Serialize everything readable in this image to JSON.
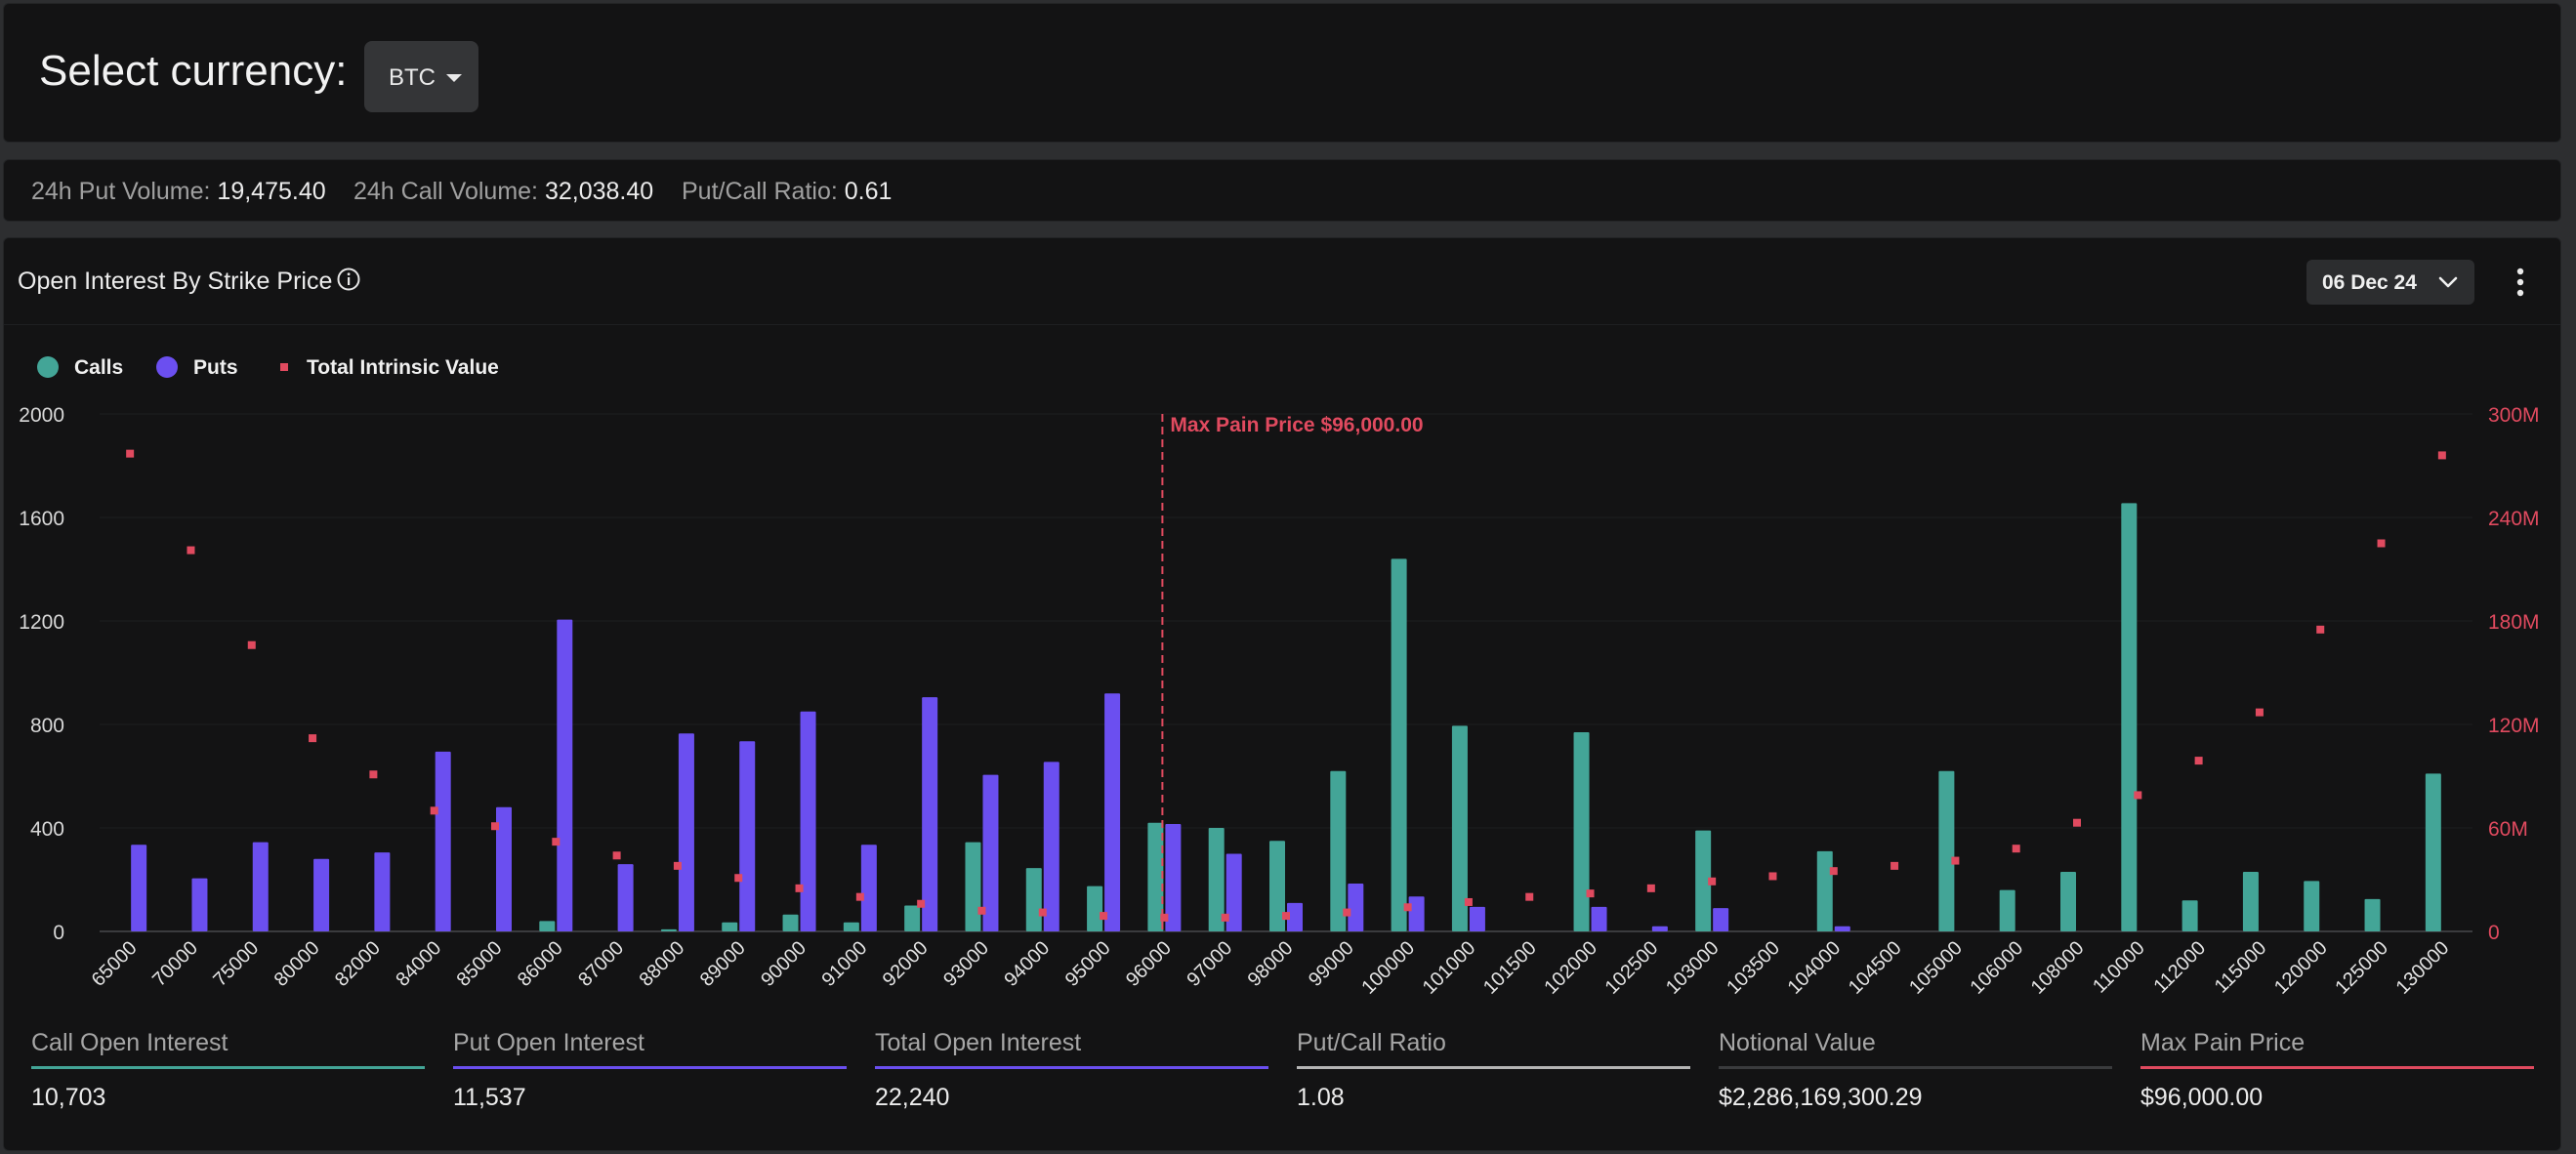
{
  "header": {
    "select_label": "Select currency:",
    "currency": "BTC"
  },
  "stats": {
    "put_volume_label": "24h Put Volume:",
    "put_volume": "19,475.40",
    "call_volume_label": "24h Call Volume:",
    "call_volume": "32,038.40",
    "ratio_label": "Put/Call Ratio:",
    "ratio": "0.61"
  },
  "chart_panel": {
    "title": "Open Interest By Strike Price",
    "date": "06 Dec 24",
    "info_icon": "info-icon",
    "more_icon": "more-vertical-icon"
  },
  "colors": {
    "calls": "#43a597",
    "puts": "#6b4ff0",
    "intrinsic": "#e04a5f",
    "max_pain": "#e04a5f",
    "ratio_line": "#b5b5b5"
  },
  "chart_data": {
    "type": "bar",
    "title": "Open Interest By Strike Price",
    "categories": [
      "65000",
      "70000",
      "75000",
      "80000",
      "82000",
      "84000",
      "85000",
      "86000",
      "87000",
      "88000",
      "89000",
      "90000",
      "91000",
      "92000",
      "93000",
      "94000",
      "95000",
      "96000",
      "97000",
      "98000",
      "99000",
      "100000",
      "101000",
      "101500",
      "102000",
      "102500",
      "103000",
      "103500",
      "104000",
      "104500",
      "105000",
      "106000",
      "108000",
      "110000",
      "112000",
      "115000",
      "120000",
      "125000",
      "130000"
    ],
    "series": [
      {
        "name": "Calls",
        "axis": "left",
        "values": [
          0,
          0,
          0,
          0,
          0,
          0,
          0,
          40,
          0,
          8,
          35,
          65,
          35,
          100,
          345,
          245,
          175,
          420,
          400,
          350,
          620,
          1440,
          795,
          0,
          770,
          0,
          390,
          0,
          310,
          0,
          620,
          160,
          230,
          1655,
          120,
          230,
          195,
          125,
          610
        ]
      },
      {
        "name": "Puts",
        "axis": "left",
        "values": [
          335,
          205,
          345,
          280,
          305,
          695,
          480,
          1205,
          260,
          765,
          735,
          850,
          335,
          905,
          605,
          655,
          920,
          415,
          300,
          110,
          185,
          135,
          95,
          0,
          95,
          20,
          90,
          0,
          20,
          0,
          0,
          0,
          0,
          0,
          0,
          0,
          0,
          0,
          0
        ]
      },
      {
        "name": "Total Intrinsic Value",
        "axis": "right",
        "values": [
          277,
          221,
          166,
          112,
          91,
          70,
          61,
          52,
          44,
          38,
          31,
          25,
          20,
          16,
          12,
          11,
          9,
          8,
          8,
          9,
          11,
          14,
          17,
          20,
          22,
          25,
          29,
          32,
          35,
          38,
          41,
          48,
          63,
          79,
          99,
          127,
          175,
          225,
          276
        ]
      }
    ],
    "y_left": {
      "min": 0,
      "max": 2000,
      "ticks": [
        "0",
        "400",
        "800",
        "1200",
        "1600",
        "2000"
      ]
    },
    "y_right": {
      "min": 0,
      "max": 300,
      "ticks": [
        "0",
        "60M",
        "120M",
        "180M",
        "240M",
        "300M"
      ]
    },
    "max_pain": {
      "strike": "96000",
      "label": "Max Pain Price $96,000.00"
    },
    "legend": {
      "position": "top-left",
      "items": [
        "Calls",
        "Puts",
        "Total Intrinsic Value"
      ]
    },
    "grid": true
  },
  "metrics": [
    {
      "label": "Call Open Interest",
      "value": "10,703",
      "color": "#43a597"
    },
    {
      "label": "Put Open Interest",
      "value": "11,537",
      "color": "#6b4ff0"
    },
    {
      "label": "Total Open Interest",
      "value": "22,240",
      "color": "#6b4ff0"
    },
    {
      "label": "Put/Call Ratio",
      "value": "1.08",
      "color": "#b5b5b5"
    },
    {
      "label": "Notional Value",
      "value": "$2,286,169,300.29",
      "color": "#3a3b3d"
    },
    {
      "label": "Max Pain Price",
      "value": "$96,000.00",
      "color": "#e04a5f"
    }
  ]
}
